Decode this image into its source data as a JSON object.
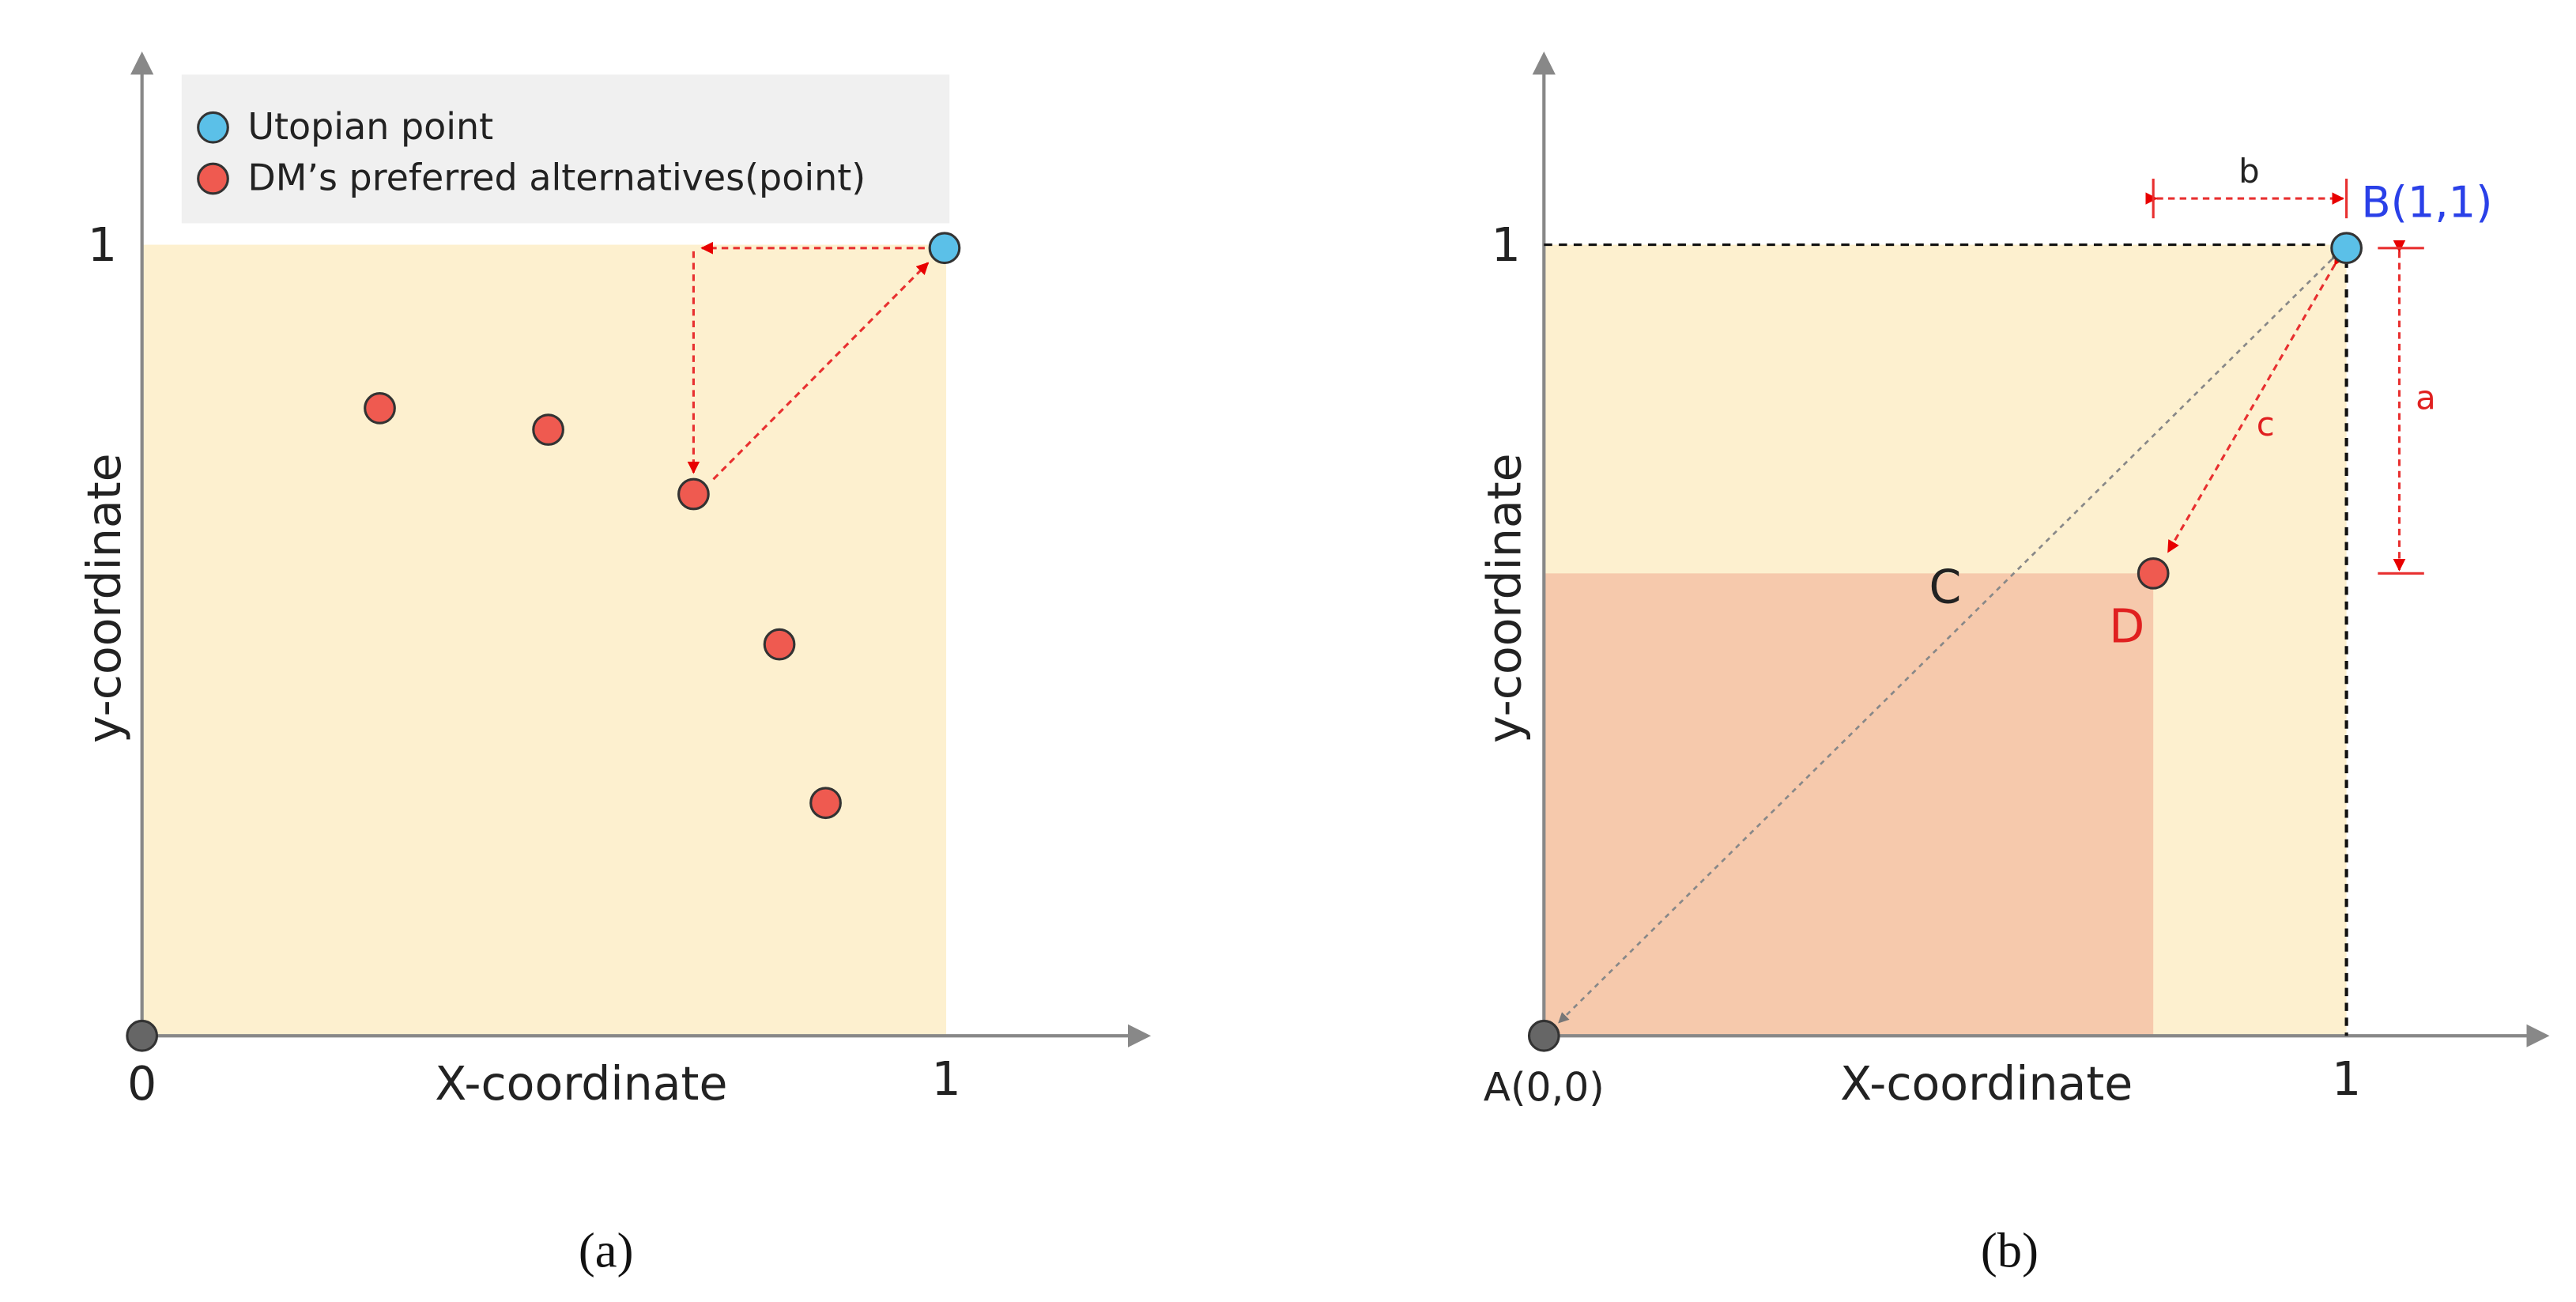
{
  "panels": [
    {
      "legend": [
        "Utopian point",
        "DM’s preferred alternatives(point)"
      ],
      "y_label": "y-coordinate",
      "x_label": "X-coordinate",
      "y_tick": "1",
      "origin_label": "0",
      "x_tick": "1",
      "caption": "(a)"
    },
    {
      "y_label": "y-coordinate",
      "x_label": "X-coordinate",
      "y_tick": "1",
      "origin_label": "A(0,0)",
      "x_tick": "1",
      "caption": "(b)",
      "point_b": "B(1,1)",
      "point_c": "C",
      "point_d": "D",
      "dim_a": "a",
      "dim_b": "b",
      "dim_c": "c"
    }
  ]
}
